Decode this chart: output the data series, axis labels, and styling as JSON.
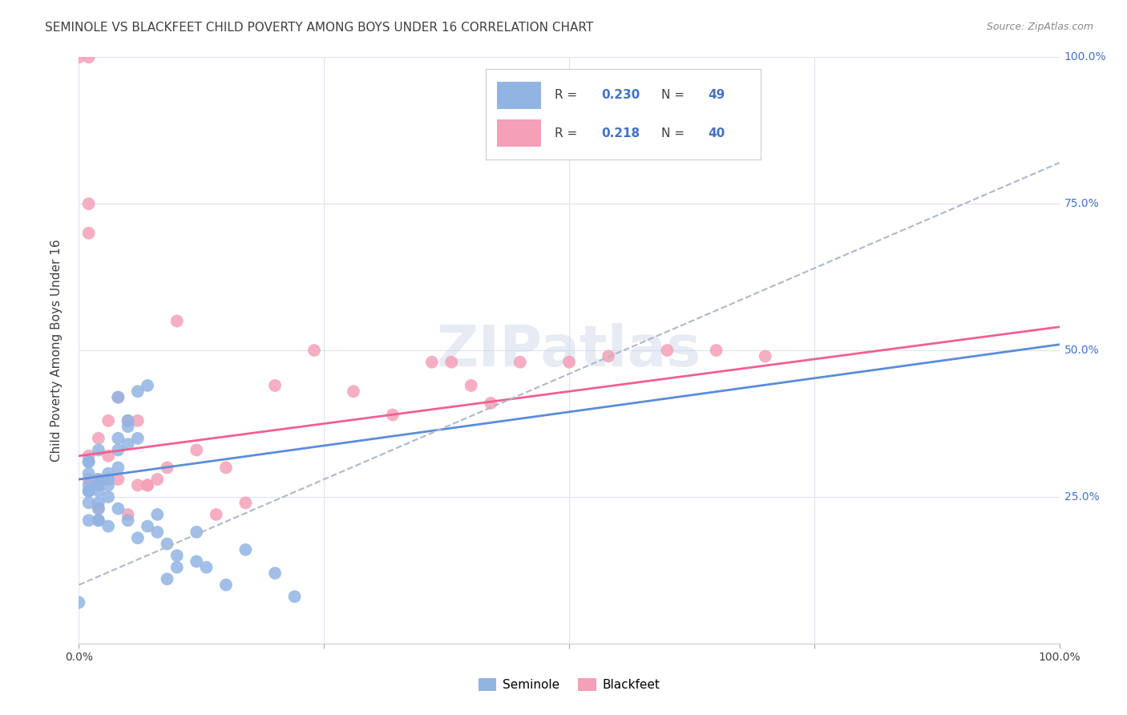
{
  "title": "SEMINOLE VS BLACKFEET CHILD POVERTY AMONG BOYS UNDER 16 CORRELATION CHART",
  "source": "Source: ZipAtlas.com",
  "ylabel": "Child Poverty Among Boys Under 16",
  "watermark": "ZIPatlas",
  "xlim": [
    0,
    1
  ],
  "ylim": [
    0,
    1
  ],
  "legend_R1": "0.230",
  "legend_N1": "49",
  "legend_R2": "0.218",
  "legend_N2": "40",
  "seminole_color": "#92b4e3",
  "blackfeet_color": "#f5a0b8",
  "trend_seminole_color": "#5b8dd9",
  "trend_blackfeet_color": "#f06090",
  "trend_diagonal_color": "#b0b8c8",
  "background_color": "#ffffff",
  "grid_color": "#dde3ed",
  "title_color": "#404040",
  "axis_label_color": "#404040",
  "right_tick_color": "#4472c4",
  "seminole_x": [
    0.0,
    0.01,
    0.01,
    0.01,
    0.01,
    0.01,
    0.01,
    0.01,
    0.01,
    0.02,
    0.02,
    0.02,
    0.02,
    0.02,
    0.02,
    0.02,
    0.02,
    0.03,
    0.03,
    0.03,
    0.03,
    0.03,
    0.04,
    0.04,
    0.04,
    0.04,
    0.04,
    0.05,
    0.05,
    0.05,
    0.05,
    0.06,
    0.06,
    0.06,
    0.07,
    0.07,
    0.08,
    0.08,
    0.09,
    0.09,
    0.1,
    0.1,
    0.12,
    0.12,
    0.13,
    0.15,
    0.17,
    0.2,
    0.22
  ],
  "seminole_y": [
    0.07,
    0.26,
    0.31,
    0.31,
    0.29,
    0.27,
    0.26,
    0.24,
    0.21,
    0.33,
    0.28,
    0.27,
    0.26,
    0.24,
    0.23,
    0.21,
    0.21,
    0.29,
    0.28,
    0.27,
    0.25,
    0.2,
    0.42,
    0.35,
    0.33,
    0.3,
    0.23,
    0.38,
    0.37,
    0.34,
    0.21,
    0.43,
    0.35,
    0.18,
    0.44,
    0.2,
    0.22,
    0.19,
    0.17,
    0.11,
    0.15,
    0.13,
    0.19,
    0.14,
    0.13,
    0.1,
    0.16,
    0.12,
    0.08
  ],
  "blackfeet_x": [
    0.0,
    0.01,
    0.01,
    0.01,
    0.01,
    0.01,
    0.02,
    0.02,
    0.02,
    0.03,
    0.03,
    0.04,
    0.04,
    0.05,
    0.05,
    0.06,
    0.06,
    0.07,
    0.07,
    0.08,
    0.09,
    0.1,
    0.12,
    0.14,
    0.15,
    0.17,
    0.2,
    0.24,
    0.28,
    0.32,
    0.36,
    0.38,
    0.4,
    0.42,
    0.45,
    0.5,
    0.54,
    0.6,
    0.65,
    0.7
  ],
  "blackfeet_y": [
    1.0,
    1.0,
    0.75,
    0.7,
    0.32,
    0.28,
    0.35,
    0.28,
    0.23,
    0.38,
    0.32,
    0.42,
    0.28,
    0.38,
    0.22,
    0.27,
    0.38,
    0.27,
    0.27,
    0.28,
    0.3,
    0.55,
    0.33,
    0.22,
    0.3,
    0.24,
    0.44,
    0.5,
    0.43,
    0.39,
    0.48,
    0.48,
    0.44,
    0.41,
    0.48,
    0.48,
    0.49,
    0.5,
    0.5,
    0.49
  ],
  "seminole_trend_x": [
    0.0,
    1.0
  ],
  "seminole_trend_y": [
    0.28,
    0.51
  ],
  "blackfeet_trend_x": [
    0.0,
    1.0
  ],
  "blackfeet_trend_y": [
    0.32,
    0.54
  ],
  "diagonal_trend_x": [
    0.0,
    1.0
  ],
  "diagonal_trend_y": [
    0.1,
    0.82
  ]
}
